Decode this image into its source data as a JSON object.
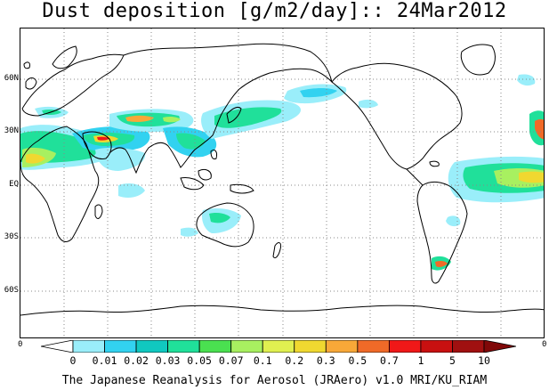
{
  "title": "Dust deposition [g/m2/day]:: 24Mar2012",
  "footer": "The Japanese Reanalysis for Aerosol (JRAero) v1.0 MRI/KU_RIAM",
  "map": {
    "lat_labels": [
      "60N",
      "30N",
      "EQ",
      "30S",
      "60S"
    ],
    "corner_left": "0",
    "corner_right": "0",
    "coastline_color": "#000000",
    "grid_color": "#888888"
  },
  "colorbar": {
    "labels": [
      "0",
      "0.01",
      "0.02",
      "0.03",
      "0.05",
      "0.07",
      "0.1",
      "0.2",
      "0.3",
      "0.5",
      "0.7",
      "1",
      "5",
      "10"
    ],
    "colors": [
      "#ffffff",
      "#9aeefa",
      "#32d2f0",
      "#10c8c0",
      "#20e09a",
      "#4ae050",
      "#a8f060",
      "#e0f050",
      "#f0d830",
      "#f8a838",
      "#f06a28",
      "#f01818",
      "#c81010",
      "#a01010",
      "#800808"
    ]
  },
  "dust_colors": {
    "c1": "#9aeefa",
    "c2": "#32d2f0",
    "c3": "#10c8c0",
    "c4": "#20e09a",
    "c5": "#4ae050",
    "c6": "#a8f060",
    "c7": "#e0f050",
    "c8": "#f0d830",
    "c9": "#f8a838",
    "c10": "#f06a28",
    "c11": "#f01818"
  }
}
